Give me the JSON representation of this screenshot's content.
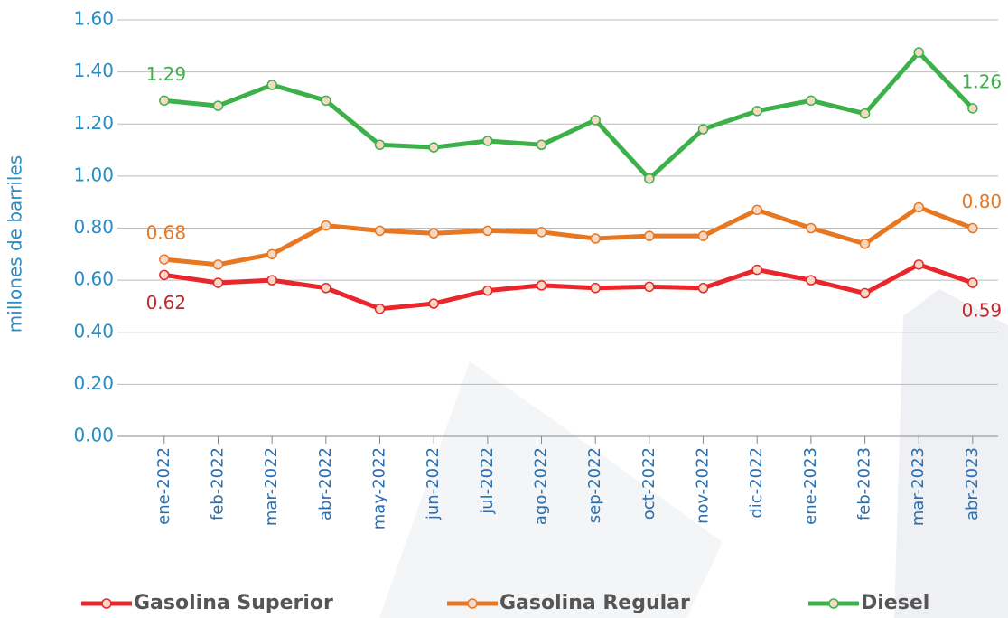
{
  "chart_data": {
    "type": "line",
    "y_label": "millones de barriles",
    "categories": [
      "ene-2022",
      "feb-2022",
      "mar-2022",
      "abr-2022",
      "may-2022",
      "jun-2022",
      "jul-2022",
      "ago-2022",
      "sep-2022",
      "oct-2022",
      "nov-2022",
      "dic-2022",
      "ene-2023",
      "feb-2023",
      "mar-2023",
      "abr-2023"
    ],
    "series": [
      {
        "name": "Gasolina Superior",
        "color": "#e8262b",
        "label_color": "#c0282d",
        "values": [
          0.62,
          0.59,
          0.6,
          0.57,
          0.49,
          0.51,
          0.56,
          0.58,
          0.57,
          0.575,
          0.57,
          0.64,
          0.6,
          0.55,
          0.66,
          0.59
        ],
        "value_labels": [
          "0.62",
          null,
          null,
          null,
          null,
          null,
          null,
          null,
          null,
          null,
          null,
          null,
          null,
          null,
          null,
          "0.59"
        ]
      },
      {
        "name": "Gasolina Regular",
        "color": "#e87722",
        "label_color": "#e87722",
        "values": [
          0.68,
          0.66,
          0.7,
          0.81,
          0.79,
          0.78,
          0.79,
          0.785,
          0.76,
          0.77,
          0.77,
          0.87,
          0.8,
          0.74,
          0.88,
          0.8
        ],
        "value_labels": [
          "0.68",
          null,
          null,
          null,
          null,
          null,
          null,
          null,
          null,
          null,
          null,
          null,
          null,
          null,
          null,
          "0.80"
        ]
      },
      {
        "name": "Diesel",
        "color": "#3cb14a",
        "label_color": "#3cb14a",
        "values": [
          1.29,
          1.27,
          1.35,
          1.29,
          1.12,
          1.11,
          1.135,
          1.12,
          1.215,
          0.99,
          1.18,
          1.25,
          1.29,
          1.24,
          1.475,
          1.26
        ],
        "value_labels": [
          "1.29",
          null,
          null,
          null,
          null,
          null,
          null,
          null,
          null,
          null,
          null,
          null,
          null,
          null,
          null,
          "1.26"
        ]
      }
    ],
    "ylim": [
      0,
      1.6
    ],
    "yticks": [
      {
        "value": 0,
        "label": "0.00"
      },
      {
        "value": 0.2,
        "label": "0.20"
      },
      {
        "value": 0.4,
        "label": "0.40"
      },
      {
        "value": 0.6,
        "label": "0.60"
      },
      {
        "value": 0.8,
        "label": "0.80"
      },
      {
        "value": 1,
        "label": "1.00"
      },
      {
        "value": 1.2,
        "label": "1.20"
      },
      {
        "value": 1.4,
        "label": "1.40"
      },
      {
        "value": 1.6,
        "label": "1.60"
      }
    ],
    "grid": true,
    "legend": "bottom"
  }
}
